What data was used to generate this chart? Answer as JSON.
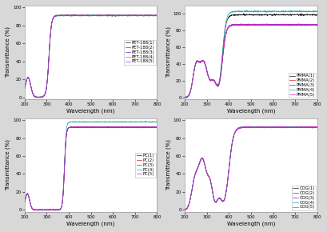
{
  "subplots": [
    {
      "xlabel": "Wavelength (nm)",
      "ylabel": "Transmittance (%)",
      "xlim": [
        200,
        800
      ],
      "ylim": [
        -2,
        102
      ],
      "yticks": [
        0,
        20,
        40,
        60,
        80,
        100
      ],
      "xticks": [
        200,
        300,
        400,
        500,
        600,
        700,
        800
      ],
      "legend_labels": [
        "PET-188(1)",
        "PET-188(2)",
        "PET-188(3)",
        "PET-188(4)",
        "PET-188(5)"
      ],
      "line_colors": [
        "#222222",
        "#cc2222",
        "#7722cc",
        "#22aaaa",
        "#cc22cc"
      ],
      "cutoff": 310,
      "plateau": [
        91,
        91,
        91,
        91,
        91
      ],
      "type": "pet"
    },
    {
      "xlabel": "Wavelength (nm)",
      "ylabel": "Transmittance (%)",
      "xlim": [
        200,
        800
      ],
      "ylim": [
        -2,
        110
      ],
      "yticks": [
        0,
        20,
        40,
        60,
        80,
        100
      ],
      "xticks": [
        200,
        300,
        400,
        500,
        600,
        700,
        800
      ],
      "legend_labels": [
        "PMMA(1)",
        "PMMA(2)",
        "PMMA(3)",
        "PMMA(4)",
        "PMMA(5)"
      ],
      "line_colors": [
        "#222222",
        "#cc2222",
        "#7722cc",
        "#22aaaa",
        "#cc22cc"
      ],
      "cutoff": 370,
      "plateau": [
        99,
        87,
        87,
        103,
        87
      ],
      "type": "pmma"
    },
    {
      "xlabel": "Wavelength (nm)",
      "ylabel": "Transmittance (%)",
      "xlim": [
        200,
        800
      ],
      "ylim": [
        -2,
        102
      ],
      "yticks": [
        0,
        20,
        40,
        60,
        80,
        100
      ],
      "xticks": [
        200,
        300,
        400,
        500,
        600,
        700,
        800
      ],
      "legend_labels": [
        "PC(1)",
        "PC(2)",
        "PC(3)",
        "PC(4)",
        "PC(5)"
      ],
      "line_colors": [
        "#222222",
        "#cc2222",
        "#7722cc",
        "#22aaaa",
        "#cc22cc"
      ],
      "cutoff": 380,
      "plateau": [
        92,
        92,
        92,
        98,
        92
      ],
      "type": "pc"
    },
    {
      "xlabel": "Wavelength (nm)",
      "ylabel": "Transmittance (%)",
      "xlim": [
        200,
        800
      ],
      "ylim": [
        -2,
        102
      ],
      "yticks": [
        0,
        20,
        40,
        60,
        80,
        100
      ],
      "xticks": [
        200,
        300,
        400,
        500,
        600,
        700,
        800
      ],
      "legend_labels": [
        "COG(1)",
        "COG(2)",
        "COG(3)",
        "COG(4)",
        "COG(5)"
      ],
      "line_colors": [
        "#222222",
        "#cc2222",
        "#7722cc",
        "#22aaaa",
        "#cc22cc"
      ],
      "cutoff": 400,
      "plateau": [
        92,
        92,
        92,
        92,
        92
      ],
      "type": "cog"
    }
  ],
  "figure_facecolor": "#d8d8d8",
  "axes_facecolor": "#ffffff",
  "tick_fontsize": 4,
  "label_fontsize": 5,
  "legend_fontsize": 3.8,
  "line_width": 0.5
}
